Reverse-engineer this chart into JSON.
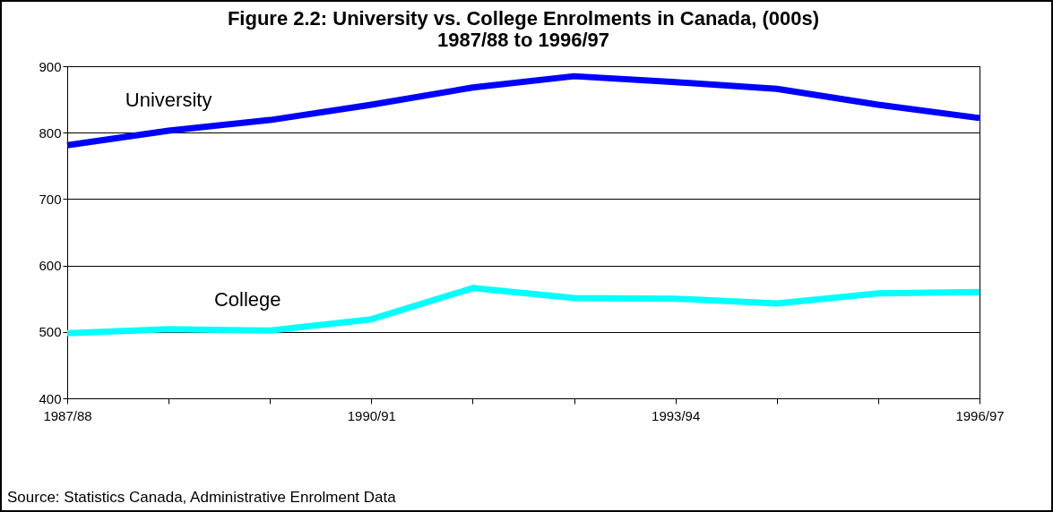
{
  "chart_data": {
    "type": "line",
    "title": "Figure 2.2:  University vs. College Enrolments in Canada, (000s)",
    "subtitle": "1987/88 to 1996/97",
    "categories": [
      "1987/88",
      null,
      null,
      "1990/91",
      null,
      null,
      "1993/94",
      null,
      null,
      "1996/97"
    ],
    "series": [
      {
        "name": "University",
        "color": "#0000ff",
        "values": [
          781,
          803,
          819,
          842,
          868,
          885,
          876,
          866,
          842,
          822
        ]
      },
      {
        "name": "College",
        "color": "#00ffff",
        "values": [
          498,
          504,
          502,
          519,
          566,
          551,
          550,
          543,
          558,
          560
        ]
      }
    ],
    "ylim": [
      400,
      900
    ],
    "yticks": [
      400,
      500,
      600,
      700,
      800,
      900
    ],
    "grid": "y",
    "marker": "none",
    "line_style": "solid",
    "annotations": [
      "Source:  Statistics Canada, Administrative Enrolment Data"
    ]
  }
}
